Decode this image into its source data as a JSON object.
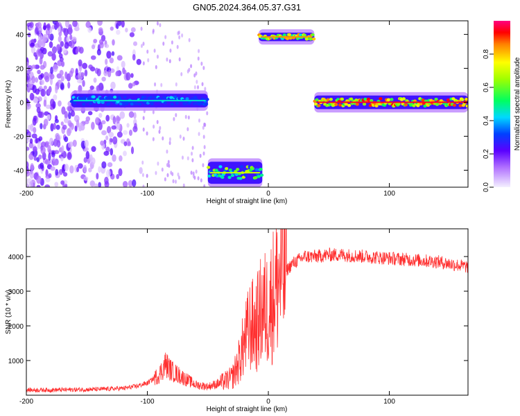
{
  "title": "GN05.2024.364.05.37.G31",
  "chart_data": [
    {
      "type": "heatmap",
      "title": "GN05.2024.364.05.37.G31",
      "xlabel": "Height of straight line (km)",
      "ylabel": "Frequency (Hz)",
      "xlim": [
        -200,
        165
      ],
      "ylim": [
        -50,
        48
      ],
      "xticks": [
        -200,
        -100,
        0,
        100
      ],
      "yticks": [
        -40,
        -20,
        0,
        20,
        40
      ],
      "colorbar": {
        "label": "Normalized spectral amplitude",
        "ticks": [
          0.0,
          0.2,
          0.4,
          0.6,
          0.8
        ],
        "range": [
          0,
          1
        ]
      },
      "features": [
        {
          "name": "noise",
          "x": [
            -200,
            -105
          ],
          "y": [
            -50,
            48
          ],
          "level": 0.15
        },
        {
          "name": "band",
          "x": [
            -163,
            -50
          ],
          "y": [
            -3,
            5
          ],
          "level": 0.45
        },
        {
          "name": "band",
          "x": [
            -50,
            -5
          ],
          "y": [
            -48,
            -35
          ],
          "level": 0.7
        },
        {
          "name": "band",
          "x": [
            -8,
            38
          ],
          "y": [
            36,
            41
          ],
          "level": 0.85
        },
        {
          "name": "band",
          "x": [
            38,
            165
          ],
          "y": [
            -4,
            4
          ],
          "level": 0.95
        }
      ]
    },
    {
      "type": "line",
      "xlabel": "Height of straight line (km)",
      "ylabel": "SNR (10 * v/v)",
      "xlim": [
        -200,
        165
      ],
      "ylim": [
        0,
        4800
      ],
      "xticks": [
        -200,
        -100,
        0,
        100
      ],
      "yticks": [
        1000,
        2000,
        3000,
        4000
      ],
      "color": "#ff3030",
      "x": [
        -200,
        -180,
        -160,
        -140,
        -120,
        -110,
        -100,
        -90,
        -85,
        -80,
        -70,
        -60,
        -50,
        -40,
        -30,
        -25,
        -20,
        -15,
        -10,
        -5,
        0,
        5,
        10,
        15,
        20,
        25,
        30,
        40,
        50,
        60,
        80,
        100,
        120,
        140,
        165
      ],
      "y": [
        150,
        150,
        160,
        170,
        200,
        250,
        350,
        600,
        900,
        700,
        500,
        300,
        250,
        350,
        500,
        900,
        1500,
        2000,
        2000,
        2500,
        2500,
        3000,
        3500,
        3600,
        3800,
        3900,
        4000,
        4000,
        4050,
        4050,
        4000,
        3950,
        3900,
        3850,
        3700
      ]
    }
  ]
}
